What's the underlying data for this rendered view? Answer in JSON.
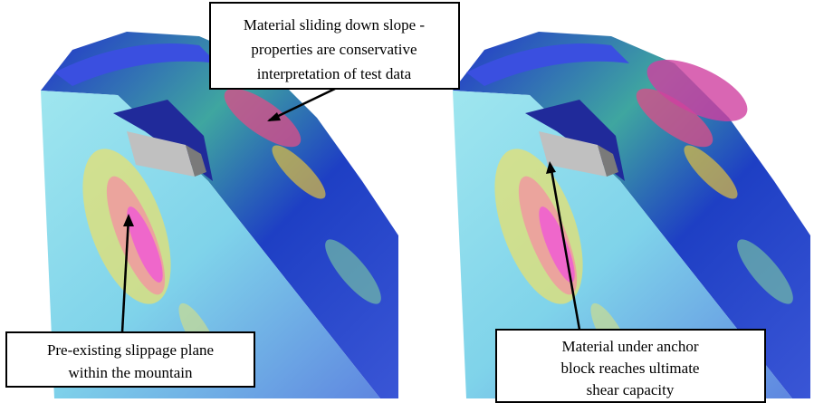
{
  "annotations": [
    {
      "lines": [
        "Material sliding down slope -",
        "properties are conservative",
        "interpretation of test data"
      ]
    },
    {
      "lines": [
        "Pre-existing slippage plane",
        "within the mountain"
      ]
    },
    {
      "lines": [
        "Material under anchor",
        "block reaches ultimate",
        "shear capacity"
      ]
    }
  ]
}
